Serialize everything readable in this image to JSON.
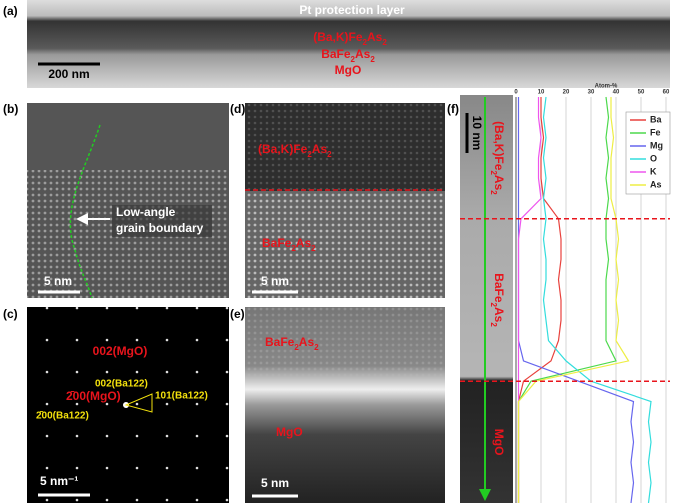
{
  "panels": {
    "a": {
      "label": "(a)",
      "top": "Pt protection layer",
      "film": "(Ba,K)Fe2As2",
      "layer": "BaFe2As2",
      "substrate": "MgO",
      "scale": "200 nm"
    },
    "b": {
      "label": "(b)",
      "annotation_1": "Low-angle",
      "annotation_2": "grain boundary",
      "scale": "5 nm"
    },
    "c": {
      "label": "(c)",
      "spots": [
        "002(MgO)",
        "2̄00(MgO)",
        "002(Ba122)",
        "101(Ba122)",
        "2̄00(Ba122)"
      ],
      "scale": "5 nm⁻¹"
    },
    "d": {
      "label": "(d)",
      "film": "(Ba,K)Fe2As2",
      "layer": "BaFe2As2",
      "scale": "5 nm"
    },
    "e": {
      "label": "(e)",
      "layer": "BaFe2As2",
      "substrate": "MgO",
      "scale": "5 nm"
    }
  },
  "chart_data": {
    "type": "line",
    "label": "(f)",
    "x_label": "Atom-%",
    "scale": "10 nm",
    "regions": [
      "(Ba,K)Fe2As2",
      "BaFe2As2",
      "MgO"
    ],
    "depth": [
      0,
      5,
      10,
      15,
      20,
      25,
      30,
      35,
      40,
      45,
      50,
      55,
      60,
      65,
      70,
      75,
      80,
      85,
      90,
      95,
      100
    ],
    "depthlim": [
      0,
      100
    ],
    "boundaries": [
      30,
      70
    ],
    "xlim": [
      0,
      60
    ],
    "xticks": [
      0,
      10,
      20,
      30,
      40,
      50,
      60
    ],
    "grid": true,
    "series": [
      {
        "name": "Ba",
        "color": "#e8413c",
        "values": [
          10,
          10,
          11,
          10,
          10,
          11,
          17,
          18,
          18,
          17,
          18,
          18,
          17,
          14,
          3,
          1,
          1,
          1,
          1,
          1,
          1
        ]
      },
      {
        "name": "Fe",
        "color": "#4cd94c",
        "values": [
          36,
          37,
          36,
          37,
          36,
          37,
          36,
          36,
          37,
          36,
          36,
          36,
          36,
          40,
          6,
          1,
          1,
          1,
          1,
          1,
          1
        ]
      },
      {
        "name": "Mg",
        "color": "#6666ee",
        "values": [
          1,
          1,
          1,
          1,
          1,
          1,
          1,
          1,
          1,
          1,
          1,
          1,
          1,
          3,
          25,
          47,
          46,
          47,
          46,
          47,
          46
        ]
      },
      {
        "name": "O",
        "color": "#33dddd",
        "values": [
          12,
          11,
          12,
          11,
          12,
          11,
          12,
          11,
          12,
          12,
          11,
          12,
          13,
          20,
          30,
          54,
          53,
          54,
          53,
          54,
          53
        ]
      },
      {
        "name": "K",
        "color": "#ee55ee",
        "values": [
          9,
          9,
          10,
          9,
          9,
          10,
          2,
          1,
          1,
          1,
          1,
          1,
          1,
          1,
          1,
          1,
          1,
          1,
          1,
          1,
          1
        ]
      },
      {
        "name": "As",
        "color": "#eeee44",
        "values": [
          38,
          38,
          39,
          38,
          38,
          38,
          40,
          41,
          40,
          41,
          40,
          41,
          40,
          45,
          8,
          1,
          1,
          1,
          1,
          1,
          1
        ]
      }
    ]
  }
}
